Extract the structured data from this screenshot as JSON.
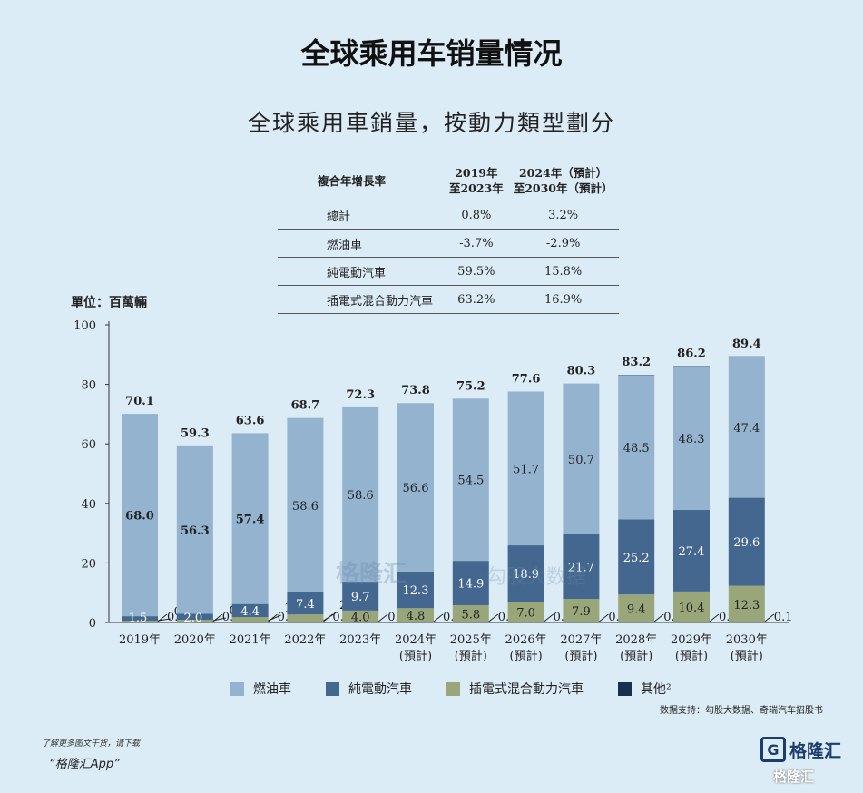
{
  "page_title": "全球乘用车销量情况",
  "subtitle": "全球乘用車銷量，按動力類型劃分",
  "table": {
    "header_label": "複合年增長率",
    "col1": [
      "2019年",
      "至2023年"
    ],
    "col2": [
      "2024年（預計）",
      "至2030年（預計）"
    ],
    "rows": [
      {
        "label": "總計",
        "v1": "0.8%",
        "v2": "3.2%"
      },
      {
        "label": "燃油車",
        "v1": "-3.7%",
        "v2": "-2.9%"
      },
      {
        "label": "純電動汽車",
        "v1": "59.5%",
        "v2": "15.8%"
      },
      {
        "label": "插電式混合動力汽車",
        "v1": "63.2%",
        "v2": "16.9%"
      }
    ]
  },
  "unit_label": "單位：百萬輛",
  "legend": [
    "燃油車",
    "純電動汽車",
    "插電式混合動力汽車",
    "其他²"
  ],
  "source": "数据支持：勾股大数据、奇瑞汽车招股书",
  "promo_line1": "了解更多图文干货，请下载",
  "promo_line2": "“格隆汇App”",
  "logo_text": "格隆汇",
  "logo_bottom": "格隆汇",
  "watermark": "格隆汇",
  "watermark2": "勾股大数据",
  "colors": {
    "ice": "#93b3cf",
    "bev": "#44678f",
    "phev": "#98a67a",
    "other": "#1a2e50",
    "background": "#dcecf6"
  },
  "chart_data": {
    "type": "bar",
    "stacked": true,
    "categories": [
      "2019年",
      "2020年",
      "2021年",
      "2022年",
      "2023年",
      "2024年",
      "2025年",
      "2026年",
      "2027年",
      "2028年",
      "2029年",
      "2030年"
    ],
    "category_sublabels": [
      "",
      "",
      "",
      "",
      "",
      "(預計)",
      "(預計)",
      "(預計)",
      "(預計)",
      "(預計)",
      "(預計)",
      "(預計)"
    ],
    "series": [
      {
        "name": "燃油車",
        "values": [
          68.0,
          56.3,
          57.4,
          58.6,
          58.6,
          56.6,
          54.5,
          51.7,
          50.7,
          48.5,
          48.3,
          47.4
        ]
      },
      {
        "name": "純電動汽車",
        "values": [
          1.5,
          2.0,
          4.4,
          7.4,
          9.7,
          12.3,
          14.9,
          18.9,
          21.7,
          25.2,
          27.4,
          29.6
        ]
      },
      {
        "name": "插電式混合動力汽車",
        "values": [
          0.6,
          0.9,
          1.8,
          2.7,
          4.0,
          4.8,
          5.8,
          7.0,
          7.9,
          9.4,
          10.4,
          12.3
        ]
      },
      {
        "name": "其他²",
        "values": [
          0.0,
          0.0,
          0.0,
          0.0,
          0.0,
          0.0,
          0.0,
          0.0,
          0.0,
          0.1,
          0.1,
          0.1
        ]
      }
    ],
    "totals": [
      70.1,
      59.3,
      63.6,
      68.7,
      72.3,
      73.8,
      75.2,
      77.6,
      80.3,
      83.2,
      86.2,
      89.4
    ],
    "ylim": [
      0,
      100
    ],
    "yticks": [
      0,
      20,
      40,
      60,
      80,
      100
    ],
    "grid": false,
    "legend_position": "bottom"
  }
}
